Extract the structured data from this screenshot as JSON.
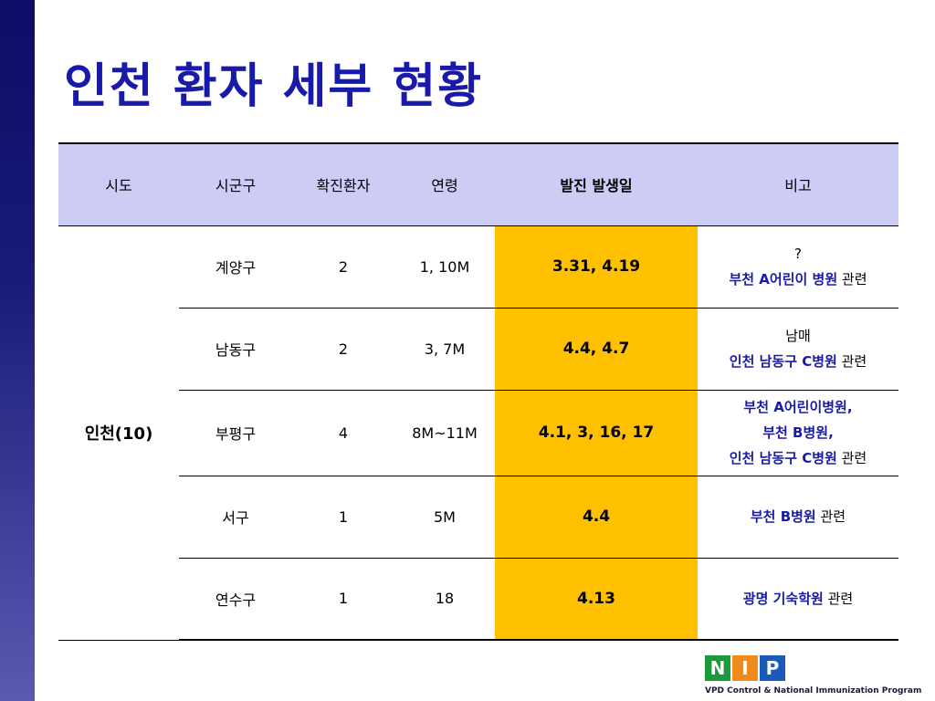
{
  "title": "인천 환자 세부 현황",
  "table": {
    "headers": [
      "시도",
      "시군구",
      "확진환자",
      "연령",
      "발진 발생일",
      "비고"
    ],
    "province": "인천(10)",
    "rows": [
      {
        "district": "계양구",
        "cases": "2",
        "age": "1, 10M",
        "onset": "3.31, 4.19",
        "note": [
          [
            {
              "t": "?",
              "b": false
            }
          ],
          [
            {
              "t": "부천 A어린이 병원",
              "b": true
            },
            {
              "t": " 관련",
              "b": false
            }
          ]
        ]
      },
      {
        "district": "남동구",
        "cases": "2",
        "age": "3, 7M",
        "onset": "4.4, 4.7",
        "note": [
          [
            {
              "t": "남매",
              "b": false
            }
          ],
          [
            {
              "t": "인천 남동구 C병원",
              "b": true
            },
            {
              "t": " 관련",
              "b": false
            }
          ]
        ]
      },
      {
        "district": "부평구",
        "cases": "4",
        "age": "8M~11M",
        "onset": "4.1, 3, 16, 17",
        "note": [
          [
            {
              "t": "부천 A어린이병원,",
              "b": true
            }
          ],
          [
            {
              "t": "부천 B병원,",
              "b": true
            }
          ],
          [
            {
              "t": "인천 남동구 C병원",
              "b": true
            },
            {
              "t": " 관련",
              "b": false
            }
          ]
        ]
      },
      {
        "district": "서구",
        "cases": "1",
        "age": "5M",
        "onset": "4.4",
        "note": [
          [
            {
              "t": "부천 B병원",
              "b": true
            },
            {
              "t": " 관련",
              "b": false
            }
          ]
        ]
      },
      {
        "district": "연수구",
        "cases": "1",
        "age": "18",
        "onset": "4.13",
        "note": [
          [
            {
              "t": "광명 기숙학원",
              "b": true
            },
            {
              "t": " 관련",
              "b": false
            }
          ]
        ]
      }
    ]
  },
  "logo": {
    "letters": [
      {
        "char": "N",
        "color": "#1a9a3a"
      },
      {
        "char": "I",
        "color": "#f08a1a"
      },
      {
        "char": "P",
        "color": "#1a5ab8"
      }
    ],
    "caption": "VPD Control & National Immunization Program"
  }
}
